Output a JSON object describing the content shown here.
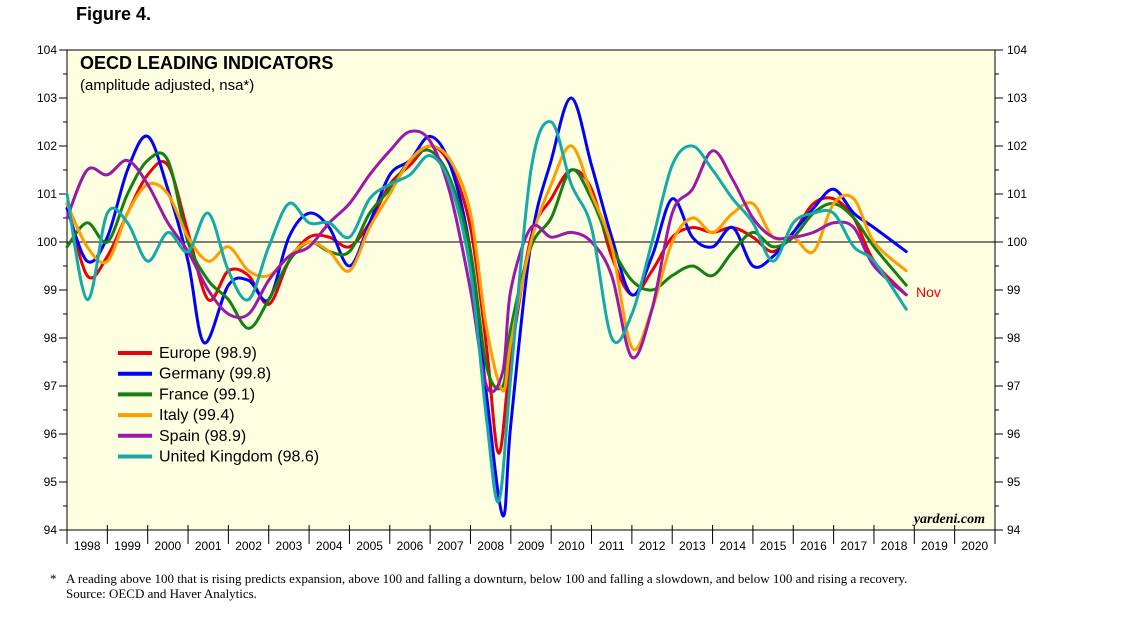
{
  "figure_label": "Figure 4.",
  "footnote": {
    "marker": "*",
    "text": "A reading above 100 that is rising predicts expansion, above 100 and falling a downturn, below 100 and falling a slowdown, and below 100 and rising a recovery.",
    "source": "Source: OECD and Haver Analytics."
  },
  "chart_data": {
    "type": "line",
    "title": "OECD LEADING INDICATORS",
    "subtitle": "(amplitude adjusted, nsa*)",
    "watermark": "yardeni.com",
    "ylim": [
      94,
      104
    ],
    "xlim": [
      1998,
      2021
    ],
    "yticks": [
      94,
      95,
      96,
      97,
      98,
      99,
      100,
      101,
      102,
      103,
      104
    ],
    "x_tick_labels": [
      "1998",
      "1999",
      "2000",
      "2001",
      "2002",
      "2003",
      "2004",
      "2005",
      "2006",
      "2007",
      "2008",
      "2009",
      "2010",
      "2011",
      "2012",
      "2013",
      "2014",
      "2015",
      "2016",
      "2017",
      "2018",
      "2019",
      "2020"
    ],
    "reference_line": 100,
    "annotation": {
      "text": "Nov",
      "x": 2019.0,
      "y": 99.0,
      "color": "#e8000b"
    },
    "series": [
      {
        "name": "Europe",
        "legend": "Europe (98.9)",
        "color": "#e8000b",
        "points": [
          [
            1998,
            100.8
          ],
          [
            1998.5,
            99.3
          ],
          [
            1999,
            99.7
          ],
          [
            1999.5,
            100.6
          ],
          [
            2000,
            101.4
          ],
          [
            2000.5,
            101.6
          ],
          [
            2001,
            100.2
          ],
          [
            2001.5,
            98.8
          ],
          [
            2002,
            99.4
          ],
          [
            2002.5,
            99.3
          ],
          [
            2003,
            98.7
          ],
          [
            2003.5,
            99.6
          ],
          [
            2004,
            100.1
          ],
          [
            2004.5,
            100.1
          ],
          [
            2005,
            99.9
          ],
          [
            2005.5,
            100.4
          ],
          [
            2006,
            101.2
          ],
          [
            2006.5,
            101.6
          ],
          [
            2007,
            102.0
          ],
          [
            2007.5,
            101.6
          ],
          [
            2008,
            100.3
          ],
          [
            2008.4,
            97.8
          ],
          [
            2008.7,
            95.6
          ],
          [
            2009,
            97.6
          ],
          [
            2009.5,
            100.1
          ],
          [
            2010,
            100.9
          ],
          [
            2010.5,
            101.5
          ],
          [
            2011,
            101.1
          ],
          [
            2011.5,
            99.7
          ],
          [
            2012,
            98.9
          ],
          [
            2012.5,
            99.4
          ],
          [
            2013,
            100.1
          ],
          [
            2013.5,
            100.3
          ],
          [
            2014,
            100.2
          ],
          [
            2014.5,
            100.3
          ],
          [
            2015,
            100.1
          ],
          [
            2015.5,
            99.8
          ],
          [
            2016,
            100.2
          ],
          [
            2016.5,
            100.8
          ],
          [
            2017,
            100.9
          ],
          [
            2017.5,
            100.5
          ],
          [
            2018,
            99.6
          ],
          [
            2018.8,
            98.9
          ]
        ]
      },
      {
        "name": "Germany",
        "legend": "Germany (99.8)",
        "color": "#0000ff",
        "points": [
          [
            1998,
            100.7
          ],
          [
            1998.5,
            99.6
          ],
          [
            1999,
            100.1
          ],
          [
            1999.5,
            101.5
          ],
          [
            2000,
            102.2
          ],
          [
            2000.5,
            101.1
          ],
          [
            2001,
            99.6
          ],
          [
            2001.4,
            97.9
          ],
          [
            2002,
            99.1
          ],
          [
            2002.5,
            99.2
          ],
          [
            2003,
            98.8
          ],
          [
            2003.5,
            100.1
          ],
          [
            2004,
            100.6
          ],
          [
            2004.5,
            100.3
          ],
          [
            2005,
            99.5
          ],
          [
            2005.5,
            100.4
          ],
          [
            2006,
            101.4
          ],
          [
            2006.5,
            101.7
          ],
          [
            2007,
            102.2
          ],
          [
            2007.5,
            101.6
          ],
          [
            2008,
            99.8
          ],
          [
            2008.4,
            96.8
          ],
          [
            2008.8,
            94.3
          ],
          [
            2009,
            96.2
          ],
          [
            2009.5,
            100.0
          ],
          [
            2010,
            101.7
          ],
          [
            2010.5,
            103.0
          ],
          [
            2011,
            101.6
          ],
          [
            2011.5,
            100.1
          ],
          [
            2012,
            98.9
          ],
          [
            2012.5,
            99.7
          ],
          [
            2013,
            100.9
          ],
          [
            2013.5,
            100.1
          ],
          [
            2014,
            99.9
          ],
          [
            2014.5,
            100.3
          ],
          [
            2015,
            99.5
          ],
          [
            2015.5,
            99.7
          ],
          [
            2016,
            100.2
          ],
          [
            2016.5,
            100.7
          ],
          [
            2017,
            101.1
          ],
          [
            2017.5,
            100.6
          ],
          [
            2018,
            100.3
          ],
          [
            2018.8,
            99.8
          ]
        ]
      },
      {
        "name": "France",
        "legend": "France (99.1)",
        "color": "#138013",
        "points": [
          [
            1998,
            99.9
          ],
          [
            1998.5,
            100.4
          ],
          [
            1999,
            100.0
          ],
          [
            1999.5,
            101.0
          ],
          [
            2000,
            101.7
          ],
          [
            2000.5,
            101.7
          ],
          [
            2001,
            100.0
          ],
          [
            2001.5,
            99.2
          ],
          [
            2002,
            98.8
          ],
          [
            2002.5,
            98.2
          ],
          [
            2003,
            98.8
          ],
          [
            2003.5,
            99.6
          ],
          [
            2004,
            100.0
          ],
          [
            2004.5,
            99.8
          ],
          [
            2005,
            99.8
          ],
          [
            2005.5,
            100.6
          ],
          [
            2006,
            101.1
          ],
          [
            2006.5,
            101.7
          ],
          [
            2007,
            101.9
          ],
          [
            2007.5,
            101.3
          ],
          [
            2008,
            99.8
          ],
          [
            2008.4,
            97.4
          ],
          [
            2008.8,
            97.0
          ],
          [
            2009,
            98.2
          ],
          [
            2009.5,
            99.9
          ],
          [
            2010,
            100.5
          ],
          [
            2010.5,
            101.5
          ],
          [
            2011,
            100.9
          ],
          [
            2011.5,
            99.9
          ],
          [
            2012,
            99.2
          ],
          [
            2012.5,
            99.0
          ],
          [
            2013,
            99.3
          ],
          [
            2013.5,
            99.5
          ],
          [
            2014,
            99.3
          ],
          [
            2014.5,
            99.8
          ],
          [
            2015,
            100.2
          ],
          [
            2015.5,
            99.9
          ],
          [
            2016,
            100.1
          ],
          [
            2016.5,
            100.6
          ],
          [
            2017,
            100.8
          ],
          [
            2017.5,
            100.5
          ],
          [
            2018,
            99.9
          ],
          [
            2018.8,
            99.1
          ]
        ]
      },
      {
        "name": "Italy",
        "legend": "Italy (99.4)",
        "color": "#ff9d00",
        "points": [
          [
            1998,
            100.8
          ],
          [
            1998.5,
            99.9
          ],
          [
            1999,
            99.6
          ],
          [
            1999.5,
            100.6
          ],
          [
            2000,
            101.2
          ],
          [
            2000.5,
            101.0
          ],
          [
            2001,
            100.1
          ],
          [
            2001.5,
            99.6
          ],
          [
            2002,
            99.9
          ],
          [
            2002.5,
            99.4
          ],
          [
            2003,
            99.3
          ],
          [
            2003.5,
            99.7
          ],
          [
            2004,
            100.0
          ],
          [
            2004.5,
            99.8
          ],
          [
            2005,
            99.4
          ],
          [
            2005.5,
            100.3
          ],
          [
            2006,
            101.0
          ],
          [
            2006.5,
            101.7
          ],
          [
            2007,
            102.0
          ],
          [
            2007.5,
            101.7
          ],
          [
            2008,
            100.6
          ],
          [
            2008.4,
            98.2
          ],
          [
            2008.8,
            96.9
          ],
          [
            2009,
            97.9
          ],
          [
            2009.5,
            100.0
          ],
          [
            2010,
            101.2
          ],
          [
            2010.5,
            102.0
          ],
          [
            2011,
            101.0
          ],
          [
            2011.5,
            99.9
          ],
          [
            2012,
            97.8
          ],
          [
            2012.5,
            98.6
          ],
          [
            2013,
            100.0
          ],
          [
            2013.5,
            100.5
          ],
          [
            2014,
            100.2
          ],
          [
            2014.5,
            100.6
          ],
          [
            2015,
            100.8
          ],
          [
            2015.5,
            100.1
          ],
          [
            2016,
            100.1
          ],
          [
            2016.5,
            99.8
          ],
          [
            2017,
            100.8
          ],
          [
            2017.5,
            100.9
          ],
          [
            2018,
            100.0
          ],
          [
            2018.8,
            99.4
          ]
        ]
      },
      {
        "name": "Spain",
        "legend": "Spain (98.9)",
        "color": "#9c18a8",
        "points": [
          [
            1998,
            100.5
          ],
          [
            1998.5,
            101.5
          ],
          [
            1999,
            101.4
          ],
          [
            1999.5,
            101.7
          ],
          [
            2000,
            101.2
          ],
          [
            2000.5,
            100.4
          ],
          [
            2001,
            99.8
          ],
          [
            2001.5,
            99.0
          ],
          [
            2002,
            98.5
          ],
          [
            2002.5,
            98.5
          ],
          [
            2003,
            99.2
          ],
          [
            2003.5,
            99.7
          ],
          [
            2004,
            99.9
          ],
          [
            2004.5,
            100.4
          ],
          [
            2005,
            100.8
          ],
          [
            2005.5,
            101.4
          ],
          [
            2006,
            101.9
          ],
          [
            2006.5,
            102.3
          ],
          [
            2007,
            102.1
          ],
          [
            2007.5,
            101.0
          ],
          [
            2008,
            99.0
          ],
          [
            2008.4,
            97.0
          ],
          [
            2008.8,
            97.3
          ],
          [
            2009,
            99.0
          ],
          [
            2009.5,
            100.3
          ],
          [
            2010,
            100.1
          ],
          [
            2010.5,
            100.2
          ],
          [
            2011,
            100.0
          ],
          [
            2011.5,
            99.3
          ],
          [
            2012,
            97.6
          ],
          [
            2012.5,
            98.6
          ],
          [
            2013,
            100.6
          ],
          [
            2013.5,
            101.1
          ],
          [
            2014,
            101.9
          ],
          [
            2014.5,
            101.3
          ],
          [
            2015,
            100.5
          ],
          [
            2015.5,
            100.1
          ],
          [
            2016,
            100.1
          ],
          [
            2016.5,
            100.2
          ],
          [
            2017,
            100.4
          ],
          [
            2017.5,
            100.3
          ],
          [
            2018,
            99.5
          ],
          [
            2018.8,
            98.9
          ]
        ]
      },
      {
        "name": "United Kingdom",
        "legend": "United Kingdom (98.6)",
        "color": "#15aaaa",
        "points": [
          [
            1998,
            101.0
          ],
          [
            1998.5,
            98.8
          ],
          [
            1999,
            100.6
          ],
          [
            1999.5,
            100.4
          ],
          [
            2000,
            99.6
          ],
          [
            2000.5,
            100.2
          ],
          [
            2001,
            99.8
          ],
          [
            2001.5,
            100.6
          ],
          [
            2002,
            99.4
          ],
          [
            2002.5,
            98.8
          ],
          [
            2003,
            99.9
          ],
          [
            2003.5,
            100.8
          ],
          [
            2004,
            100.4
          ],
          [
            2004.5,
            100.4
          ],
          [
            2005,
            100.1
          ],
          [
            2005.5,
            100.9
          ],
          [
            2006,
            101.2
          ],
          [
            2006.5,
            101.4
          ],
          [
            2007,
            101.8
          ],
          [
            2007.5,
            101.2
          ],
          [
            2008,
            99.4
          ],
          [
            2008.4,
            96.3
          ],
          [
            2008.7,
            94.6
          ],
          [
            2009,
            97.2
          ],
          [
            2009.5,
            101.5
          ],
          [
            2010,
            102.5
          ],
          [
            2010.5,
            101.2
          ],
          [
            2011,
            100.3
          ],
          [
            2011.5,
            98.0
          ],
          [
            2012,
            98.5
          ],
          [
            2012.5,
            100.0
          ],
          [
            2013,
            101.6
          ],
          [
            2013.5,
            102.0
          ],
          [
            2014,
            101.5
          ],
          [
            2014.5,
            100.9
          ],
          [
            2015,
            100.4
          ],
          [
            2015.5,
            99.6
          ],
          [
            2016,
            100.4
          ],
          [
            2016.5,
            100.6
          ],
          [
            2017,
            100.6
          ],
          [
            2017.5,
            99.9
          ],
          [
            2018,
            99.6
          ],
          [
            2018.8,
            98.6
          ]
        ]
      }
    ]
  }
}
